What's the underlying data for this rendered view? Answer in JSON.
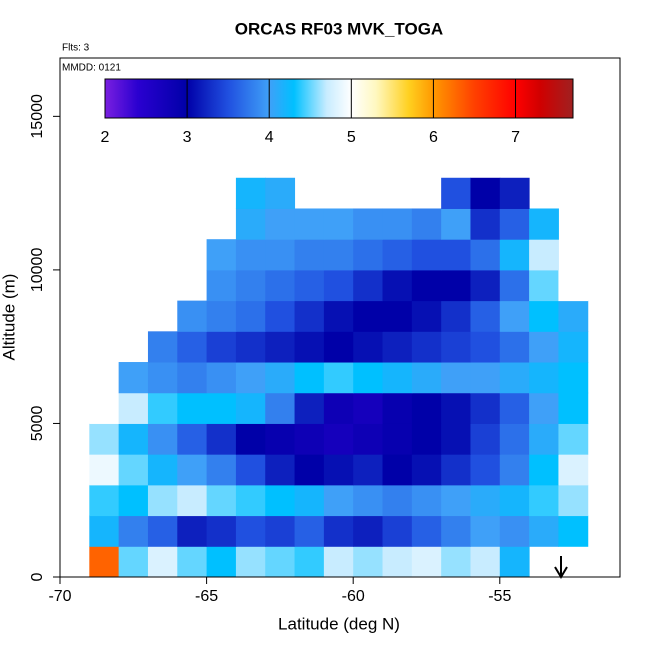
{
  "chart_data": {
    "type": "heatmap",
    "title": "ORCAS RF03 MVK_TOGA",
    "subtitle": "Flts: 3",
    "annotation": "MMDD: 0121",
    "x_label": "Latitude (deg N)",
    "y_label": "Altitude (m)",
    "xlim": [
      -70,
      -50.9
    ],
    "ylim": [
      0,
      16900
    ],
    "xticks": [
      -70,
      -65,
      -60,
      -55
    ],
    "yticks": [
      0,
      5000,
      10000,
      15000
    ],
    "lat_edges": [
      -69,
      -68,
      -67,
      -66,
      -65,
      -64,
      -63,
      -62,
      -61,
      -60,
      -59,
      -58,
      -57,
      -56,
      -55,
      -54,
      -53,
      -52
    ],
    "alt_edges": [
      0,
      1000,
      2000,
      3000,
      4000,
      5000,
      6000,
      7000,
      8000,
      9000,
      10000,
      11000,
      12000,
      13000
    ],
    "values": [
      [
        6.3,
        4.5,
        4.8,
        4.5,
        4.3,
        4.6,
        4.5,
        4.4,
        4.7,
        4.6,
        4.7,
        4.8,
        4.6,
        4.7,
        4.2,
        null,
        null
      ],
      [
        4.2,
        3.8,
        3.6,
        3.2,
        3.3,
        3.5,
        3.4,
        3.6,
        3.3,
        3.2,
        3.4,
        3.6,
        3.8,
        4.0,
        3.9,
        4.1,
        4.3
      ],
      [
        4.4,
        4.3,
        4.6,
        4.7,
        4.5,
        4.4,
        4.3,
        4.2,
        4.0,
        3.9,
        3.8,
        3.9,
        4.0,
        4.1,
        4.2,
        4.4,
        4.6
      ],
      [
        4.9,
        4.5,
        4.2,
        4.0,
        3.8,
        3.5,
        3.2,
        3.0,
        3.1,
        3.2,
        3.0,
        3.1,
        3.3,
        3.5,
        3.8,
        4.3,
        4.8
      ],
      [
        4.6,
        4.2,
        3.9,
        3.6,
        3.3,
        3.0,
        2.9,
        2.8,
        2.7,
        2.8,
        2.9,
        3.0,
        3.1,
        3.4,
        3.7,
        4.1,
        4.5
      ],
      [
        5.0,
        4.7,
        4.4,
        4.3,
        4.3,
        4.2,
        3.8,
        3.2,
        2.8,
        2.7,
        2.9,
        3.0,
        3.1,
        3.3,
        3.6,
        4.0,
        4.3
      ],
      [
        null,
        4.0,
        3.9,
        3.8,
        3.9,
        4.0,
        4.1,
        4.3,
        4.4,
        4.3,
        4.2,
        4.1,
        4.0,
        4.0,
        4.1,
        4.2,
        4.3
      ],
      [
        null,
        null,
        3.8,
        3.6,
        3.4,
        3.3,
        3.2,
        3.1,
        3.0,
        3.1,
        3.2,
        3.3,
        3.4,
        3.5,
        3.7,
        4.0,
        4.2
      ],
      [
        null,
        null,
        null,
        3.9,
        3.8,
        3.7,
        3.5,
        3.3,
        3.1,
        3.0,
        3.0,
        3.1,
        3.3,
        3.6,
        4.0,
        4.3,
        4.1
      ],
      [
        null,
        null,
        null,
        null,
        3.9,
        3.8,
        3.7,
        3.6,
        3.5,
        3.3,
        3.1,
        3.0,
        3.0,
        3.2,
        3.7,
        4.5,
        5.0
      ],
      [
        null,
        null,
        null,
        null,
        4.0,
        3.9,
        3.9,
        3.8,
        3.8,
        3.7,
        3.6,
        3.5,
        3.5,
        3.7,
        4.2,
        4.7,
        null
      ],
      [
        null,
        null,
        null,
        null,
        null,
        4.1,
        4.0,
        4.0,
        4.0,
        3.9,
        3.9,
        3.8,
        4.0,
        3.3,
        3.6,
        4.2,
        null
      ],
      [
        null,
        null,
        null,
        null,
        null,
        4.2,
        4.1,
        null,
        null,
        null,
        null,
        null,
        3.5,
        3.0,
        3.2,
        null,
        null
      ]
    ],
    "colorbar_lim": [
      2,
      7.7
    ],
    "colorbar_ticks": [
      2,
      3,
      4,
      5,
      6,
      7
    ],
    "colormap": [
      {
        "value": 2,
        "color": "#7a1fe0"
      },
      {
        "value": 2.4,
        "color": "#2a00d0"
      },
      {
        "value": 3,
        "color": "#0000a8"
      },
      {
        "value": 3.5,
        "color": "#2050e0"
      },
      {
        "value": 4,
        "color": "#3fa0f8"
      },
      {
        "value": 4.3,
        "color": "#00c0ff"
      },
      {
        "value": 4.7,
        "color": "#c8ecff"
      },
      {
        "value": 5,
        "color": "#ffffff"
      },
      {
        "value": 5.3,
        "color": "#fff8c0"
      },
      {
        "value": 5.7,
        "color": "#ffd020"
      },
      {
        "value": 6,
        "color": "#ff9800"
      },
      {
        "value": 6.5,
        "color": "#ff4000"
      },
      {
        "value": 7,
        "color": "#ff0000"
      },
      {
        "value": 7.3,
        "color": "#d00000"
      },
      {
        "value": 7.7,
        "color": "#a02020"
      }
    ]
  }
}
